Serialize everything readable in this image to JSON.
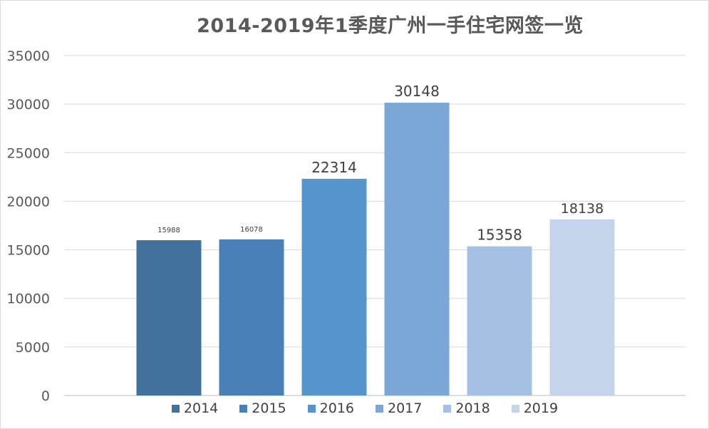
{
  "chart_data": {
    "type": "bar",
    "title": "2014-2019年1季度广州一手住宅网签一览",
    "categories": [
      "2014",
      "2015",
      "2016",
      "2017",
      "2018",
      "2019"
    ],
    "values": [
      15988,
      16078,
      22314,
      30148,
      15358,
      18138
    ],
    "data_labels": [
      "15988",
      "16078",
      "22314",
      "30148",
      "15358",
      "18138"
    ],
    "colors": [
      "#41719c",
      "#4a80b8",
      "#5694cc",
      "#7ba7d7",
      "#a4c0e3",
      "#c4d4ea"
    ],
    "yticks": [
      "0",
      "5000",
      "10000",
      "15000",
      "20000",
      "25000",
      "30000",
      "35000"
    ],
    "ylim": [
      0,
      35000
    ],
    "grid": true,
    "legend": "bottom",
    "xlabel": "",
    "ylabel": ""
  }
}
